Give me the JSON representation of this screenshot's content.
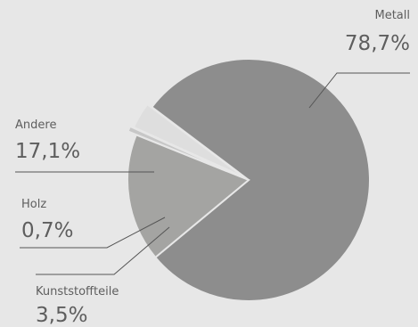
{
  "chart_data": {
    "type": "pie",
    "title": "",
    "slices": [
      {
        "label": "Metall",
        "value_text": "78,7%",
        "value": 78.7,
        "color": "#8d8d8d"
      },
      {
        "label": "Andere",
        "value_text": "17,1%",
        "value": 17.1,
        "color": "#a4a4a2"
      },
      {
        "label": "Holz",
        "value_text": "0,7%",
        "value": 0.7,
        "color": "#c7c7c7"
      },
      {
        "label": "Kunststoffteile",
        "value_text": "3,5%",
        "value": 3.5,
        "color": "#dedede"
      }
    ]
  }
}
